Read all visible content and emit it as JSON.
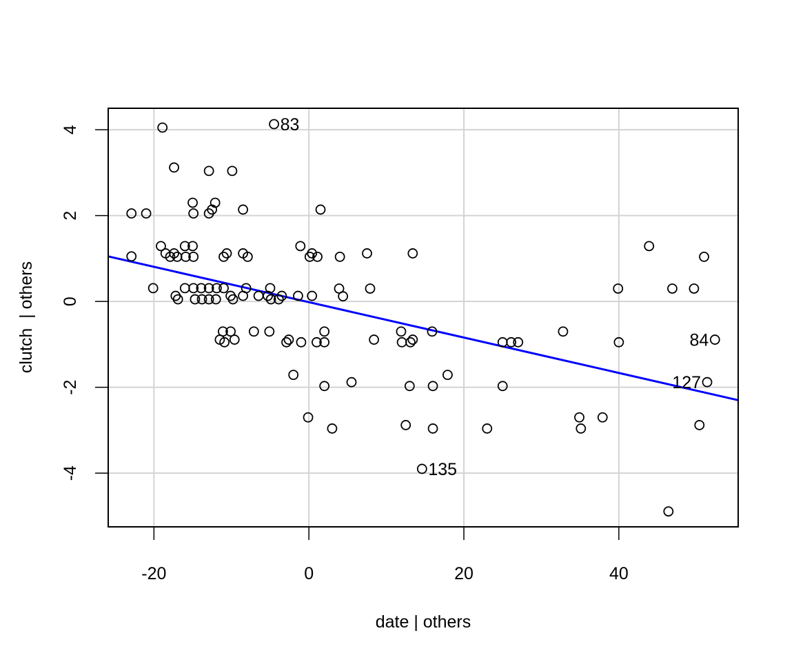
{
  "chart_data": {
    "type": "scatter",
    "title": "",
    "xlabel": "date | others",
    "ylabel": "clutch  | others",
    "xlim": [
      -25.9,
      55.4
    ],
    "ylim": [
      -5.25,
      4.5
    ],
    "xticks": [
      -20,
      0,
      20,
      40
    ],
    "yticks": [
      -4,
      -2,
      0,
      2,
      4
    ],
    "grid": true,
    "grid_color": "#d3d3d3",
    "point_color": "#000000",
    "line_color": "#0000ff",
    "regression_line": {
      "slope": -0.0412,
      "intercept": -0.017,
      "x_range": [
        -25.9,
        55.4
      ]
    },
    "points": [
      [
        -18.9,
        4.05
      ],
      [
        -4.5,
        4.13
      ],
      [
        -17.4,
        3.12
      ],
      [
        -12.9,
        3.04
      ],
      [
        -9.9,
        3.04
      ],
      [
        -22.9,
        2.05
      ],
      [
        -21.0,
        2.05
      ],
      [
        -15.0,
        2.3
      ],
      [
        -14.9,
        2.05
      ],
      [
        -12.1,
        2.3
      ],
      [
        -12.5,
        2.14
      ],
      [
        -12.9,
        2.05
      ],
      [
        -8.5,
        2.14
      ],
      [
        1.5,
        2.14
      ],
      [
        -22.9,
        1.05
      ],
      [
        -19.1,
        1.29
      ],
      [
        -18.5,
        1.12
      ],
      [
        -17.4,
        1.12
      ],
      [
        -17.9,
        1.04
      ],
      [
        -17.0,
        1.04
      ],
      [
        -16.0,
        1.29
      ],
      [
        -15.0,
        1.29
      ],
      [
        -15.9,
        1.04
      ],
      [
        -14.9,
        1.04
      ],
      [
        -11.0,
        1.04
      ],
      [
        -10.6,
        1.12
      ],
      [
        -8.5,
        1.12
      ],
      [
        -7.9,
        1.04
      ],
      [
        -1.1,
        1.29
      ],
      [
        0.4,
        1.12
      ],
      [
        0.1,
        1.04
      ],
      [
        1.1,
        1.04
      ],
      [
        4.0,
        1.04
      ],
      [
        7.5,
        1.12
      ],
      [
        13.4,
        1.12
      ],
      [
        43.9,
        1.29
      ],
      [
        51.0,
        1.04
      ],
      [
        -20.1,
        0.31
      ],
      [
        -16.0,
        0.31
      ],
      [
        -14.9,
        0.31
      ],
      [
        -13.9,
        0.31
      ],
      [
        -12.9,
        0.31
      ],
      [
        -11.9,
        0.31
      ],
      [
        -11.0,
        0.31
      ],
      [
        -8.1,
        0.31
      ],
      [
        -5.0,
        0.31
      ],
      [
        3.9,
        0.3
      ],
      [
        7.9,
        0.3
      ],
      [
        39.9,
        0.3
      ],
      [
        46.9,
        0.3
      ],
      [
        49.7,
        0.3
      ],
      [
        -17.2,
        0.13
      ],
      [
        -10.1,
        0.13
      ],
      [
        -8.5,
        0.13
      ],
      [
        -6.5,
        0.13
      ],
      [
        -5.3,
        0.13
      ],
      [
        -3.5,
        0.13
      ],
      [
        -1.4,
        0.13
      ],
      [
        0.4,
        0.13
      ],
      [
        4.4,
        0.12
      ],
      [
        -16.9,
        0.05
      ],
      [
        -14.7,
        0.05
      ],
      [
        -13.8,
        0.05
      ],
      [
        -12.9,
        0.05
      ],
      [
        -12.0,
        0.05
      ],
      [
        -9.8,
        0.05
      ],
      [
        -4.9,
        0.05
      ],
      [
        -3.9,
        0.05
      ],
      [
        -11.1,
        -0.7
      ],
      [
        -10.1,
        -0.7
      ],
      [
        -7.1,
        -0.7
      ],
      [
        -5.1,
        -0.7
      ],
      [
        2.0,
        -0.7
      ],
      [
        11.9,
        -0.7
      ],
      [
        15.9,
        -0.7
      ],
      [
        32.8,
        -0.7
      ],
      [
        -11.5,
        -0.89
      ],
      [
        -10.9,
        -0.95
      ],
      [
        -9.6,
        -0.89
      ],
      [
        -2.9,
        -0.95
      ],
      [
        -2.6,
        -0.89
      ],
      [
        -1.0,
        -0.95
      ],
      [
        1.0,
        -0.95
      ],
      [
        2.0,
        -0.95
      ],
      [
        8.4,
        -0.89
      ],
      [
        12.0,
        -0.95
      ],
      [
        13.1,
        -0.95
      ],
      [
        13.4,
        -0.89
      ],
      [
        25.0,
        -0.95
      ],
      [
        26.1,
        -0.95
      ],
      [
        27.0,
        -0.95
      ],
      [
        40.0,
        -0.95
      ],
      [
        52.4,
        -0.89
      ],
      [
        -2.0,
        -1.71
      ],
      [
        17.9,
        -1.71
      ],
      [
        5.5,
        -1.88
      ],
      [
        51.4,
        -1.88
      ],
      [
        2.0,
        -1.97
      ],
      [
        13.0,
        -1.97
      ],
      [
        16.0,
        -1.97
      ],
      [
        25.0,
        -1.97
      ],
      [
        -0.1,
        -2.7
      ],
      [
        34.9,
        -2.7
      ],
      [
        37.9,
        -2.7
      ],
      [
        12.5,
        -2.88
      ],
      [
        50.4,
        -2.88
      ],
      [
        3.0,
        -2.96
      ],
      [
        16.0,
        -2.96
      ],
      [
        23.0,
        -2.96
      ],
      [
        35.1,
        -2.96
      ],
      [
        14.6,
        -3.9
      ],
      [
        46.4,
        -4.89
      ]
    ],
    "labeled_points": [
      {
        "label": "83",
        "x": -4.5,
        "y": 4.13,
        "side": "right"
      },
      {
        "label": "135",
        "x": 14.6,
        "y": -3.9,
        "side": "right"
      },
      {
        "label": "84",
        "x": 52.4,
        "y": -0.89,
        "side": "left"
      },
      {
        "label": "127",
        "x": 51.4,
        "y": -1.88,
        "side": "left"
      }
    ]
  }
}
